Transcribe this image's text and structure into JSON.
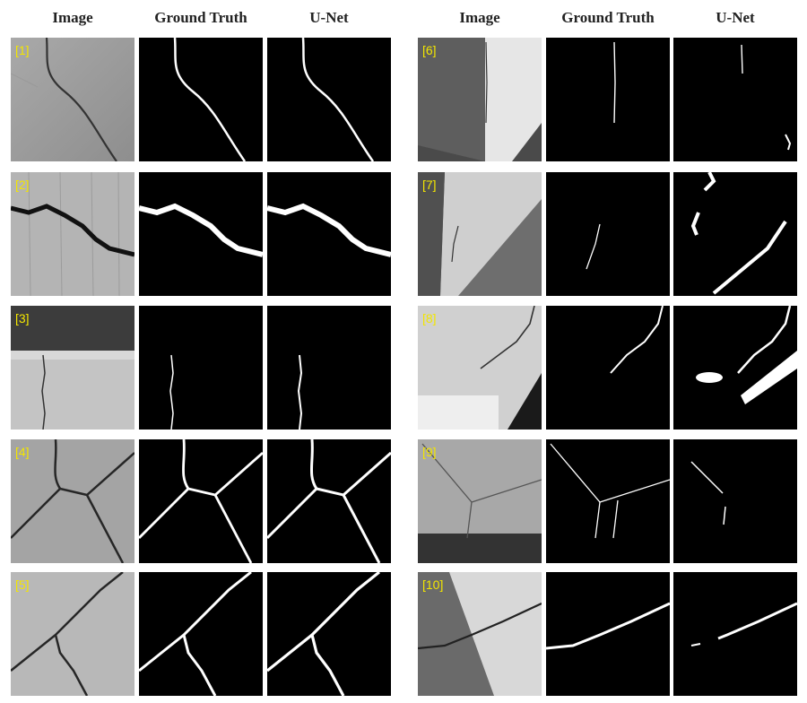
{
  "headers": [
    "Image",
    "Ground Truth",
    "U-Net",
    "Image",
    "Ground Truth",
    "U-Net"
  ],
  "rows": [
    {
      "label": "[1]"
    },
    {
      "label": "[2]"
    },
    {
      "label": "[3]"
    },
    {
      "label": "[4]"
    },
    {
      "label": "[5]"
    },
    {
      "label": "[6]"
    },
    {
      "label": "[7]"
    },
    {
      "label": "[8]"
    },
    {
      "label": "[9]"
    },
    {
      "label": "[10]"
    }
  ],
  "colors": {
    "label": "#f3e600",
    "mask_bg": "#000000",
    "mask_fg": "#ffffff"
  }
}
